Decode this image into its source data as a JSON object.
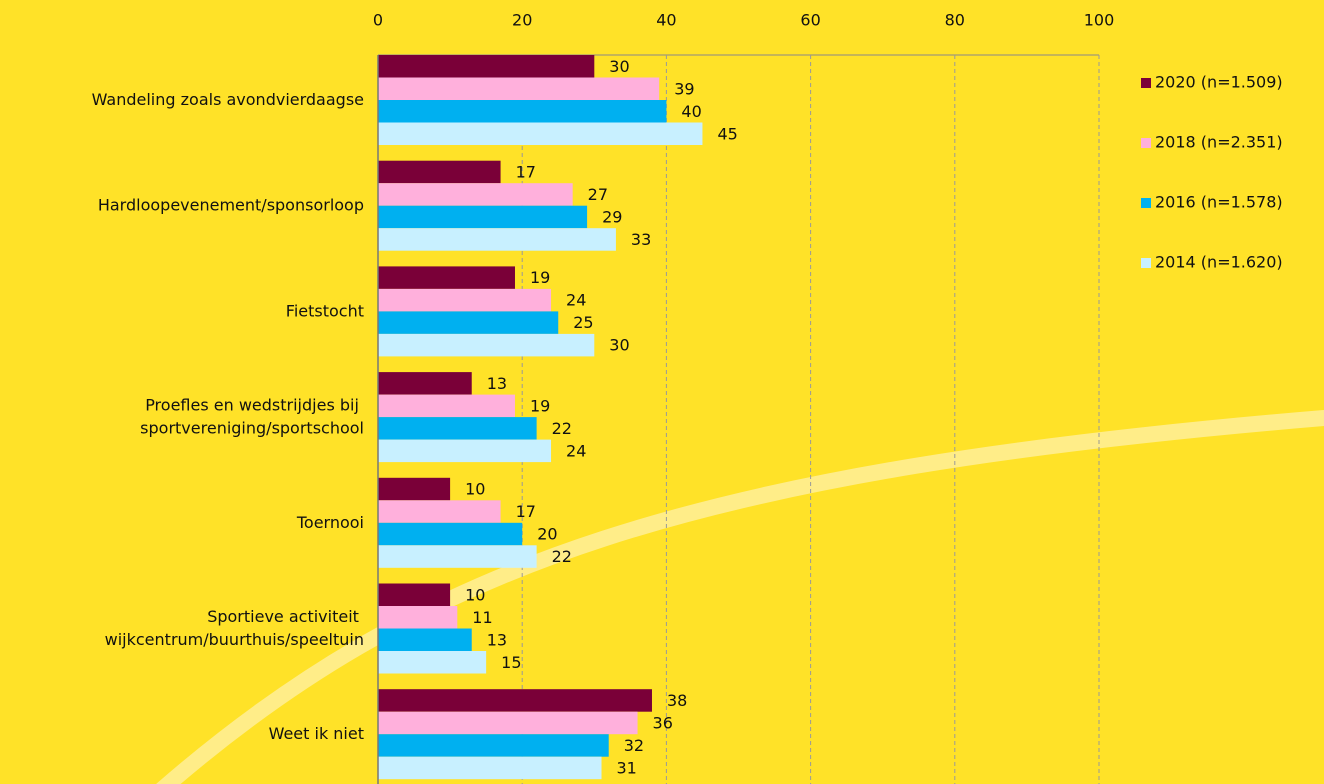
{
  "chart_data": {
    "type": "bar",
    "orientation": "horizontal",
    "categories": [
      "Wandeling zoals avondvierdaagse",
      "Hardloopevenement/sponsorloop",
      "Fietstocht",
      "Proefles en wedstrijdjes bij sportvereniging/sportschool",
      "Toernooi",
      "Sportieve activiteit wijkcentrum/buurthuis/speeltuin",
      "Weet ik niet"
    ],
    "series": [
      {
        "name": "2020 (n=1.509)",
        "color": "#7a0038",
        "values": [
          30,
          17,
          19,
          13,
          10,
          10,
          38
        ]
      },
      {
        "name": "2018 (n=2.351)",
        "color": "#ffb0dc",
        "values": [
          39,
          27,
          24,
          19,
          17,
          11,
          36
        ]
      },
      {
        "name": "2016 (n=1.578)",
        "color": "#00b0f0",
        "values": [
          40,
          29,
          25,
          22,
          20,
          13,
          32
        ]
      },
      {
        "name": "2014 (n=1.620)",
        "color": "#c8f0ff",
        "values": [
          45,
          33,
          30,
          24,
          22,
          15,
          31
        ]
      }
    ],
    "xlim": [
      0,
      100
    ],
    "xticks": [
      0,
      20,
      40,
      60,
      80,
      100
    ],
    "grid": true,
    "legend": "right"
  }
}
